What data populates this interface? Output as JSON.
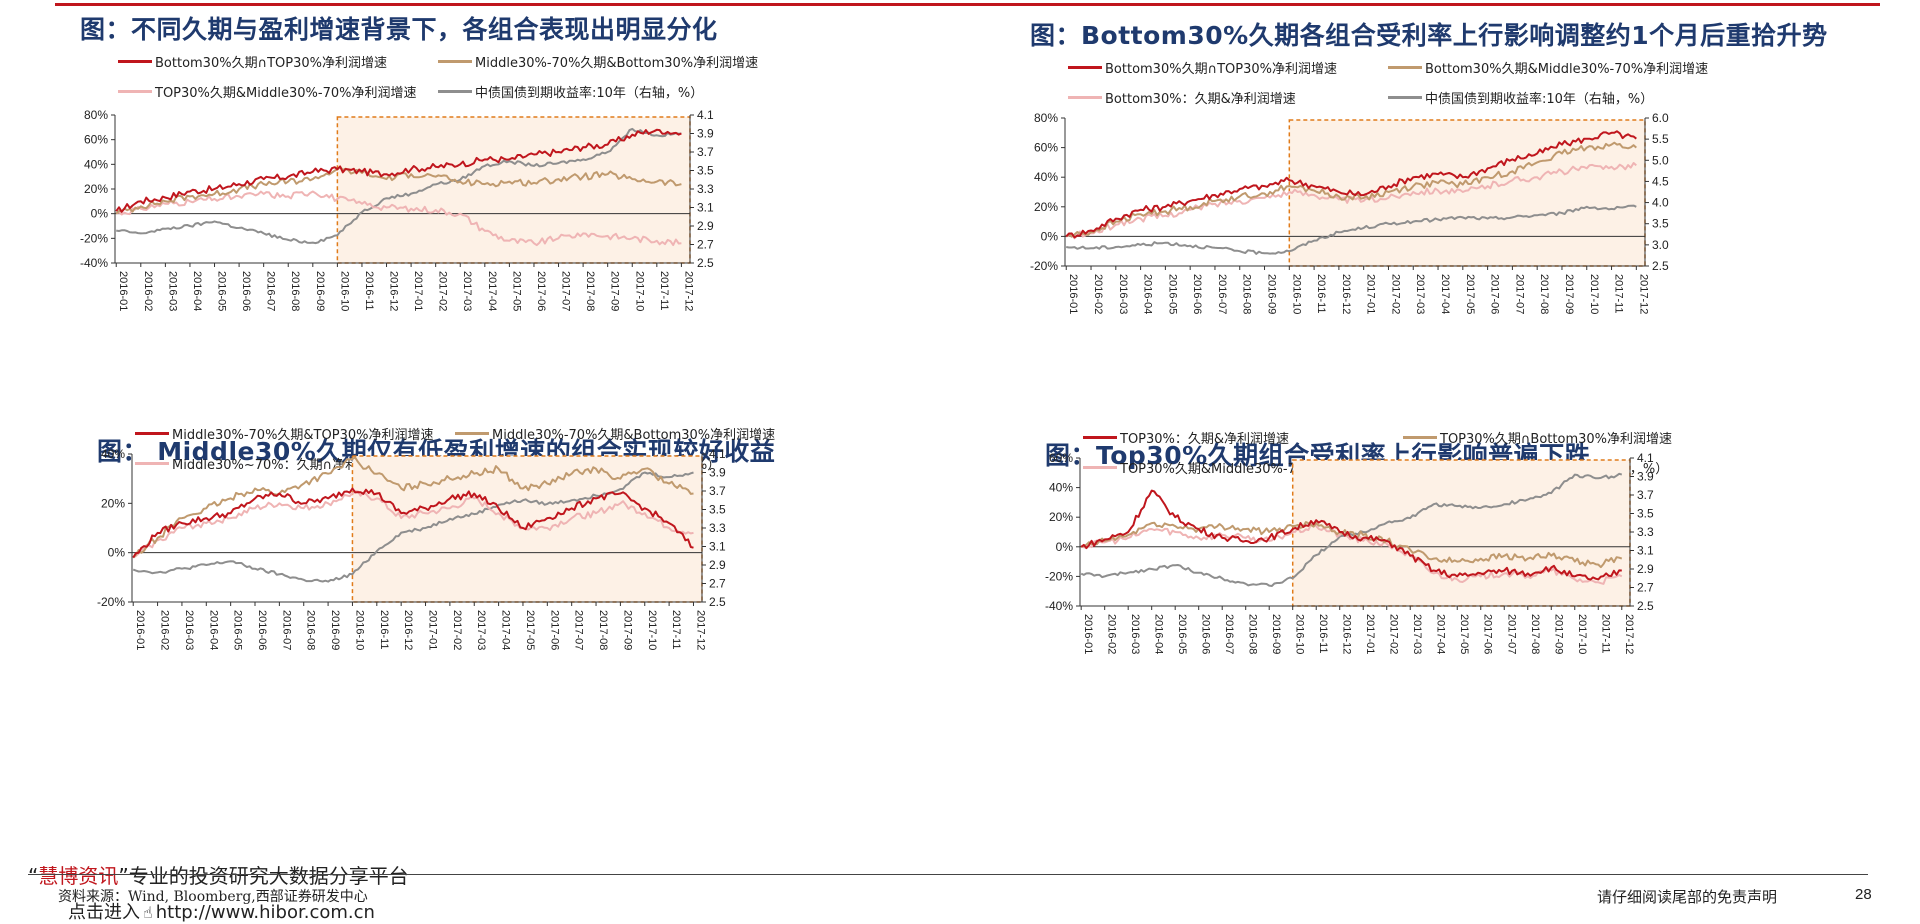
{
  "colors": {
    "red": "#c0161d",
    "tan": "#c09a6e",
    "pink": "#efb4b4",
    "gray": "#8e8e8e",
    "box": "#e07b1a",
    "shade": "#fdf1e6",
    "title": "#1f3a6e"
  },
  "footer": {
    "brand_open": "“",
    "brand": "慧博资讯",
    "brand_close": "”",
    "brand_rest": "专业的投资研究大数据分享平台",
    "source": "资料来源：Wind, Bloomberg,西部证券研发中心",
    "link_prefix": "点击进入",
    "link": "http://www.hibor.com.cn",
    "disclaimer": "请仔细阅读尾部的免责声明",
    "page": "28"
  },
  "chart_data": [
    {
      "title": "图：不同久期与盈利增速背景下，各组合表现出明显分化",
      "type": "line",
      "x": [
        "2016-01",
        "2016-02",
        "2016-03",
        "2016-04",
        "2016-05",
        "2016-06",
        "2016-07",
        "2016-08",
        "2016-09",
        "2016-10",
        "2016-11",
        "2016-12",
        "2017-01",
        "2017-02",
        "2017-03",
        "2017-04",
        "2017-05",
        "2017-06",
        "2017-07",
        "2017-08",
        "2017-09",
        "2017-10",
        "2017-11",
        "2017-12"
      ],
      "ylim": [
        -40,
        80
      ],
      "yticks": [
        "80%",
        "60%",
        "40%",
        "20%",
        "0%",
        "-20%",
        "-40%"
      ],
      "y2lim": [
        2.5,
        4.1
      ],
      "y2ticks": [
        "4.1",
        "3.9",
        "3.7",
        "3.5",
        "3.3",
        "3.1",
        "2.9",
        "2.7",
        "2.5"
      ],
      "highlight": [
        "2016-10",
        "2017-12"
      ],
      "series": [
        {
          "name": "Bottom30%久期∩TOP30%净利润增速",
          "color": "red",
          "axis": "left",
          "values": [
            2,
            10,
            13,
            18,
            20,
            24,
            28,
            30,
            34,
            36,
            34,
            32,
            36,
            38,
            40,
            44,
            44,
            48,
            50,
            54,
            56,
            64,
            68,
            65
          ]
        },
        {
          "name": "Middle30%-70%久期&Bottom30%净利润增速",
          "color": "tan",
          "axis": "left",
          "values": [
            0,
            6,
            10,
            14,
            16,
            20,
            24,
            26,
            28,
            36,
            33,
            28,
            32,
            30,
            26,
            24,
            26,
            25,
            28,
            30,
            32,
            28,
            26,
            24
          ]
        },
        {
          "name": "TOP30%久期&Middle30%-70%净利润增速",
          "color": "pink",
          "axis": "left",
          "values": [
            0,
            4,
            8,
            10,
            12,
            14,
            16,
            14,
            18,
            12,
            8,
            5,
            4,
            3,
            0,
            -14,
            -22,
            -24,
            -20,
            -16,
            -18,
            -20,
            -22,
            -24
          ]
        },
        {
          "name": "中债国债到期收益率:10年（右轴，%）",
          "color": "gray",
          "axis": "right",
          "values": [
            2.85,
            2.82,
            2.87,
            2.9,
            2.95,
            2.88,
            2.82,
            2.75,
            2.72,
            2.8,
            3.05,
            3.2,
            3.25,
            3.35,
            3.4,
            3.55,
            3.6,
            3.55,
            3.58,
            3.62,
            3.7,
            3.95,
            3.88,
            3.9
          ]
        }
      ],
      "legend_rows": [
        [
          0,
          1
        ],
        [
          2,
          3
        ]
      ]
    },
    {
      "title": "图：Bottom30%久期各组合受利率上行影响调整约1个月后重拾升势",
      "type": "line",
      "x": [
        "2016-01",
        "2016-02",
        "2016-03",
        "2016-04",
        "2016-05",
        "2016-06",
        "2016-07",
        "2016-08",
        "2016-09",
        "2016-10",
        "2016-11",
        "2016-12",
        "2017-01",
        "2017-02",
        "2017-03",
        "2017-04",
        "2017-05",
        "2017-06",
        "2017-07",
        "2017-08",
        "2017-09",
        "2017-10",
        "2017-11",
        "2017-12"
      ],
      "ylim": [
        -20,
        80
      ],
      "yticks": [
        "80%",
        "60%",
        "40%",
        "20%",
        "0%",
        "-20%"
      ],
      "y2lim": [
        2.5,
        6.0
      ],
      "y2ticks": [
        "6.0",
        "5.5",
        "5.0",
        "4.5",
        "4.0",
        "3.5",
        "3.0",
        "2.5"
      ],
      "highlight": [
        "2016-10",
        "2017-12"
      ],
      "series": [
        {
          "name": "Bottom30%久期∩TOP30%净利润增速",
          "color": "red",
          "axis": "left",
          "values": [
            0,
            4,
            12,
            18,
            20,
            24,
            28,
            32,
            34,
            38,
            34,
            30,
            28,
            34,
            40,
            42,
            40,
            46,
            52,
            56,
            62,
            66,
            70,
            66
          ]
        },
        {
          "name": "Bottom30%久期&Middle30%-70%净利润增速",
          "color": "tan",
          "axis": "left",
          "values": [
            0,
            3,
            10,
            15,
            17,
            20,
            24,
            27,
            29,
            34,
            31,
            27,
            26,
            30,
            34,
            36,
            35,
            40,
            44,
            50,
            56,
            60,
            62,
            60
          ]
        },
        {
          "name": "Bottom30%：久期&净利润增速",
          "color": "pink",
          "axis": "left",
          "values": [
            0,
            2,
            8,
            12,
            14,
            18,
            22,
            24,
            26,
            30,
            28,
            25,
            24,
            26,
            30,
            31,
            30,
            34,
            38,
            40,
            44,
            46,
            47,
            48
          ]
        },
        {
          "name": "中债国债到期收益率:10年（右轴，%）",
          "color": "gray",
          "axis": "right",
          "values": [
            2.95,
            2.92,
            2.95,
            3.0,
            3.05,
            2.98,
            2.93,
            2.85,
            2.8,
            2.85,
            3.1,
            3.3,
            3.4,
            3.5,
            3.55,
            3.6,
            3.65,
            3.62,
            3.65,
            3.7,
            3.75,
            3.9,
            3.85,
            3.9
          ]
        }
      ],
      "legend_rows": [
        [
          0,
          1
        ],
        [
          2,
          3
        ]
      ]
    },
    {
      "title": "图： Middle30%久期仅有低盈利增速的组合实现较好收益",
      "type": "line",
      "x": [
        "2016-01",
        "2016-02",
        "2016-03",
        "2016-04",
        "2016-05",
        "2016-06",
        "2016-07",
        "2016-08",
        "2016-09",
        "2016-10",
        "2016-11",
        "2016-12",
        "2017-01",
        "2017-02",
        "2017-03",
        "2017-04",
        "2017-05",
        "2017-06",
        "2017-07",
        "2017-08",
        "2017-09",
        "2017-10",
        "2017-11",
        "2017-12"
      ],
      "ylim": [
        -20,
        40
      ],
      "yticks": [
        "40%",
        "20%",
        "0%",
        "-20%"
      ],
      "y2lim": [
        2.5,
        4.1
      ],
      "y2ticks": [
        "4.1",
        "3.9",
        "3.7",
        "3.5",
        "3.3",
        "3.1",
        "2.9",
        "2.7",
        "2.5"
      ],
      "highlight": [
        "2016-10",
        "2017-12"
      ],
      "series": [
        {
          "name": "Middle30%-70%久期&TOP30%净利润增速",
          "color": "red",
          "axis": "left",
          "values": [
            -2,
            8,
            12,
            14,
            16,
            22,
            24,
            20,
            22,
            26,
            24,
            16,
            18,
            22,
            24,
            18,
            10,
            14,
            18,
            22,
            24,
            18,
            12,
            2
          ]
        },
        {
          "name": "Middle30%-70%久期&Bottom30%净利润增速",
          "color": "tan",
          "axis": "left",
          "values": [
            -2,
            6,
            14,
            18,
            22,
            26,
            24,
            28,
            32,
            38,
            32,
            26,
            28,
            30,
            32,
            34,
            26,
            28,
            32,
            34,
            30,
            34,
            28,
            24
          ]
        },
        {
          "name": "Middle30%~70%：久期∩净利润增速",
          "color": "pink",
          "axis": "left",
          "values": [
            -2,
            5,
            10,
            12,
            14,
            18,
            20,
            18,
            20,
            24,
            22,
            14,
            16,
            18,
            22,
            16,
            10,
            10,
            14,
            16,
            20,
            16,
            10,
            8
          ]
        },
        {
          "name": "中债国债到期收益率:10年（右轴，%）",
          "color": "gray",
          "axis": "right",
          "values": [
            2.85,
            2.82,
            2.86,
            2.9,
            2.94,
            2.86,
            2.8,
            2.74,
            2.72,
            2.8,
            3.05,
            3.25,
            3.3,
            3.4,
            3.45,
            3.55,
            3.6,
            3.56,
            3.6,
            3.65,
            3.72,
            3.9,
            3.85,
            3.9
          ]
        }
      ],
      "legend_rows": [
        [
          0,
          1
        ],
        [
          2,
          3
        ]
      ]
    },
    {
      "title": "图：Top30%久期组合受利率上行影响普遍下跌",
      "type": "line",
      "x": [
        "2016-01",
        "2016-02",
        "2016-03",
        "2016-04",
        "2016-05",
        "2016-06",
        "2016-07",
        "2016-08",
        "2016-09",
        "2016-10",
        "2016-11",
        "2016-12",
        "2017-01",
        "2017-02",
        "2017-03",
        "2017-04",
        "2017-05",
        "2017-06",
        "2017-07",
        "2017-08",
        "2017-09",
        "2017-10",
        "2017-11",
        "2017-12"
      ],
      "ylim": [
        -40,
        60
      ],
      "yticks": [
        "60%",
        "40%",
        "20%",
        "0%",
        "-20%",
        "-40%"
      ],
      "y2lim": [
        2.5,
        4.1
      ],
      "y2ticks": [
        "4.1",
        "3.9",
        "3.7",
        "3.5",
        "3.3",
        "3.1",
        "2.9",
        "2.7",
        "2.5"
      ],
      "highlight": [
        "2016-10",
        "2017-12"
      ],
      "series": [
        {
          "name": "TOP30%：久期&净利润增速",
          "color": "red",
          "axis": "left",
          "values": [
            0,
            5,
            10,
            38,
            20,
            12,
            6,
            4,
            6,
            12,
            18,
            10,
            6,
            4,
            -6,
            -16,
            -20,
            -18,
            -16,
            -18,
            -14,
            -20,
            -22,
            -16
          ]
        },
        {
          "name": "TOP30%久期∩Bottom30%净利润增速",
          "color": "tan",
          "axis": "left",
          "values": [
            0,
            4,
            8,
            16,
            14,
            12,
            14,
            12,
            10,
            14,
            16,
            10,
            8,
            4,
            -2,
            -8,
            -10,
            -8,
            -6,
            -8,
            -6,
            -10,
            -12,
            -8
          ]
        },
        {
          "name": "TOP30%久期&Middle30%-70%净利润增速",
          "color": "pink",
          "axis": "left",
          "values": [
            0,
            3,
            6,
            12,
            10,
            6,
            8,
            6,
            4,
            10,
            14,
            8,
            4,
            2,
            -6,
            -18,
            -22,
            -20,
            -18,
            -20,
            -16,
            -22,
            -24,
            -20
          ]
        },
        {
          "name": "中债国债到期收益率:10年（右轴，%）",
          "color": "gray",
          "axis": "right",
          "values": [
            2.85,
            2.82,
            2.86,
            2.9,
            2.94,
            2.86,
            2.8,
            2.74,
            2.72,
            2.8,
            3.05,
            3.25,
            3.3,
            3.4,
            3.45,
            3.6,
            3.58,
            3.56,
            3.6,
            3.65,
            3.72,
            3.92,
            3.88,
            3.92
          ]
        }
      ],
      "legend_rows": [
        [
          0,
          1
        ],
        [
          2,
          3
        ]
      ]
    }
  ]
}
